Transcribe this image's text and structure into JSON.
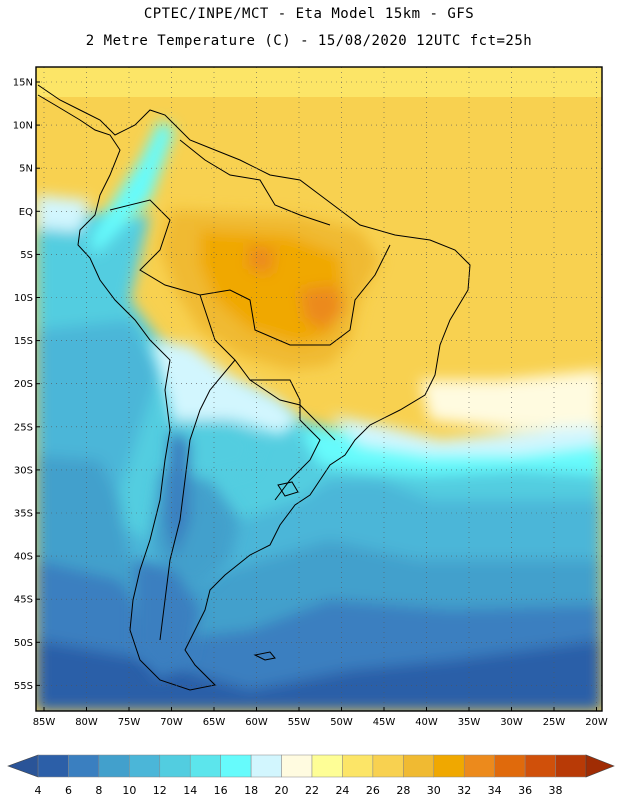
{
  "header": {
    "title_line1": "CPTEC/INPE/MCT -  Eta Model 15km - GFS",
    "title_line2": "2 Metre Temperature (C) - 15/08/2020 12UTC fct=25h"
  },
  "map": {
    "lat_labels": [
      "15N",
      "10N",
      "5N",
      "EQ",
      "5S",
      "10S",
      "15S",
      "20S",
      "25S",
      "30S",
      "35S",
      "40S",
      "45S",
      "50S",
      "55S"
    ],
    "lon_labels": [
      "85W",
      "80W",
      "75W",
      "70W",
      "65W",
      "60W",
      "55W",
      "50W",
      "45W",
      "40W",
      "35W",
      "30W",
      "25W",
      "20W"
    ],
    "lat_values": [
      15,
      10,
      5,
      0,
      -5,
      -10,
      -15,
      -20,
      -25,
      -30,
      -35,
      -40,
      -45,
      -50,
      -55
    ],
    "lon_values": [
      -85,
      -80,
      -75,
      -70,
      -65,
      -60,
      -55,
      -50,
      -45,
      -40,
      -35,
      -30,
      -25,
      -20
    ]
  },
  "legend": {
    "colors": [
      "#2c5fa8",
      "#3a7fc0",
      "#42a0cc",
      "#4bb6d8",
      "#52cde0",
      "#5ce5ec",
      "#66fbfc",
      "#d2f6fe",
      "#fffbe0",
      "#fefe96",
      "#fce567",
      "#f8d150",
      "#f0ba32",
      "#f0a800",
      "#ec8a1c",
      "#e06a0c",
      "#d0500a",
      "#b83a06"
    ],
    "left_arrow_color": "#2a5498",
    "right_arrow_color": "#a02c04",
    "labels": [
      "4",
      "6",
      "8",
      "10",
      "12",
      "14",
      "16",
      "18",
      "20",
      "22",
      "24",
      "26",
      "28",
      "30",
      "32",
      "34",
      "36",
      "38"
    ]
  }
}
